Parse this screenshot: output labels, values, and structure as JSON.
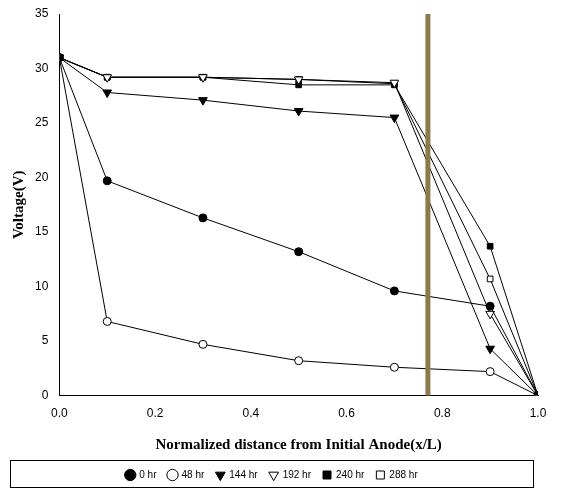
{
  "chart_data": {
    "type": "line",
    "x_label": "Normalized distance from Initial Anode(x/L)",
    "y_label": "Voltage(V)",
    "xlim": [
      0,
      1
    ],
    "xticks": [
      {
        "value": 0,
        "label": "0.0"
      },
      {
        "value": 0.2,
        "label": "0.2"
      },
      {
        "value": 0.4,
        "label": "0.4"
      },
      {
        "value": 0.6,
        "label": "0.6"
      },
      {
        "value": 0.8,
        "label": "0.8"
      },
      {
        "value": 1,
        "label": "1.0"
      }
    ],
    "ylim": [
      0,
      35
    ],
    "yticks": [
      0,
      5,
      10,
      15,
      20,
      25,
      30,
      35
    ],
    "grid": false,
    "legend": "bottom",
    "x": [
      0,
      0.1,
      0.3,
      0.5,
      0.7,
      0.9,
      1.0
    ],
    "series": [
      {
        "name": "0 hr",
        "color": "#000000",
        "marker": "circle",
        "values": [
          31,
          19.7,
          16.3,
          13.2,
          9.6,
          8.2,
          0
        ]
      },
      {
        "name": "48 hr",
        "color": "#000000",
        "marker": "circle_open",
        "values": [
          31,
          6.8,
          4.7,
          3.2,
          2.6,
          2.2,
          0
        ]
      },
      {
        "name": "144 hr",
        "color": "#000000",
        "marker": "triangle_down",
        "values": [
          31,
          27.8,
          27.1,
          26.1,
          25.5,
          4.3,
          0
        ]
      },
      {
        "name": "192 hr",
        "color": "#000000",
        "marker": "triangle_down_open",
        "values": [
          31,
          29.2,
          29.2,
          29.0,
          28.7,
          7.5,
          0
        ]
      },
      {
        "name": "240 hr",
        "color": "#000000",
        "marker": "square",
        "values": [
          31,
          29.2,
          29.2,
          28.5,
          28.5,
          13.7,
          0
        ]
      },
      {
        "name": "288 hr",
        "color": "#000000",
        "marker": "square_open",
        "values": [
          31,
          29.2,
          29.2,
          29.0,
          28.6,
          10.7,
          0
        ]
      }
    ],
    "reference_lines": [
      {
        "x": 0.77,
        "color": "#8c7a4b"
      }
    ]
  }
}
